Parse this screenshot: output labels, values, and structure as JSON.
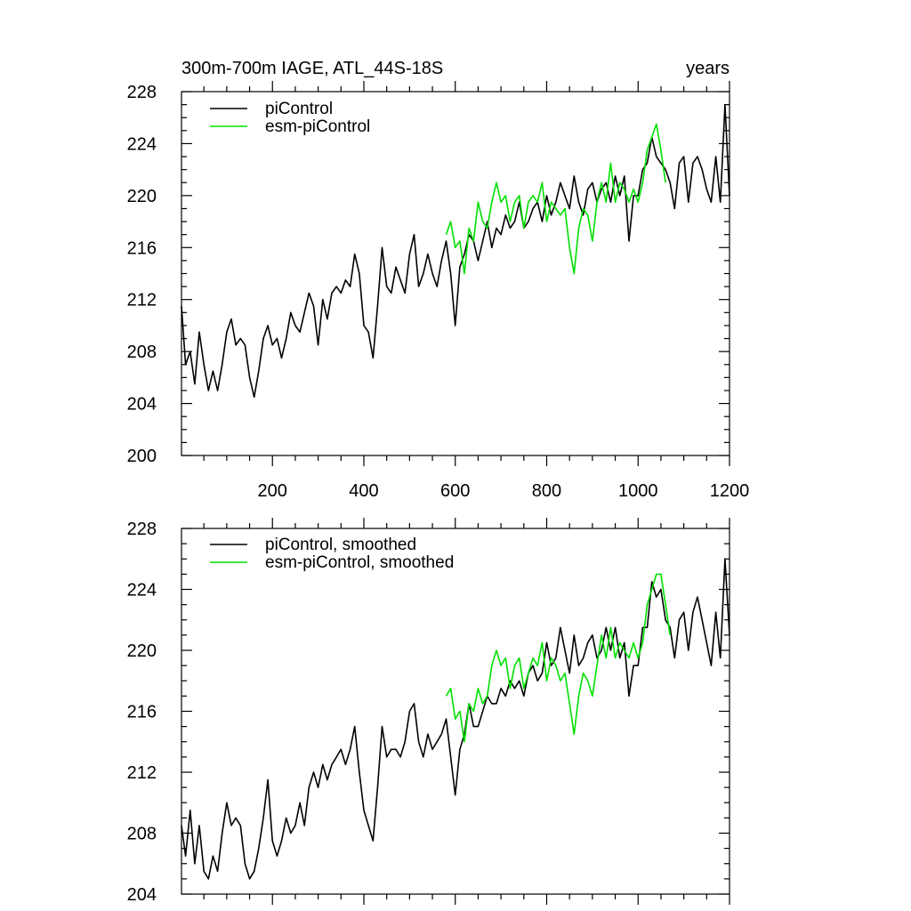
{
  "chart_data": [
    {
      "type": "line",
      "title_left": "300m-700m IAGE, ATL_44S-18S",
      "title_right": "years",
      "xlabel": "",
      "ylabel": "",
      "xlim": [
        1,
        1200
      ],
      "ylim": [
        200,
        228
      ],
      "x_ticks": [
        200,
        400,
        600,
        800,
        1000,
        1200
      ],
      "y_ticks": [
        200,
        204,
        208,
        212,
        216,
        220,
        224,
        228
      ],
      "grid": false,
      "legend_position": "top-left",
      "series": [
        {
          "name": "piControl",
          "color": "#000000",
          "x": [
            1,
            10,
            20,
            30,
            40,
            50,
            60,
            70,
            80,
            90,
            100,
            110,
            120,
            130,
            140,
            150,
            160,
            170,
            180,
            190,
            200,
            210,
            220,
            230,
            240,
            250,
            260,
            270,
            280,
            290,
            300,
            310,
            320,
            330,
            340,
            350,
            360,
            370,
            380,
            390,
            400,
            410,
            420,
            430,
            440,
            450,
            460,
            470,
            480,
            490,
            500,
            510,
            520,
            530,
            540,
            550,
            560,
            570,
            580,
            590,
            600,
            610,
            620,
            630,
            640,
            650,
            660,
            670,
            680,
            690,
            700,
            710,
            720,
            730,
            740,
            750,
            760,
            770,
            780,
            790,
            800,
            810,
            820,
            830,
            840,
            850,
            860,
            870,
            880,
            890,
            900,
            910,
            920,
            930,
            940,
            950,
            960,
            970,
            980,
            990,
            1000,
            1010,
            1020,
            1030,
            1040,
            1050,
            1060,
            1070,
            1080,
            1090,
            1100,
            1110,
            1120,
            1130,
            1140,
            1150,
            1160,
            1170,
            1180,
            1190,
            1200
          ],
          "values": [
            211.5,
            207.0,
            208.0,
            205.5,
            209.5,
            207.0,
            205.0,
            206.5,
            205.0,
            207.0,
            209.5,
            210.5,
            208.5,
            209.0,
            208.5,
            206.0,
            204.5,
            206.5,
            209.0,
            210.0,
            208.5,
            209.0,
            207.5,
            209.0,
            211.0,
            210.0,
            209.5,
            211.0,
            212.5,
            211.5,
            208.5,
            212.0,
            210.5,
            212.5,
            213.0,
            212.5,
            213.5,
            213.0,
            215.5,
            214.0,
            210.0,
            209.5,
            207.5,
            211.5,
            216.0,
            213.0,
            212.5,
            214.5,
            213.5,
            212.5,
            215.5,
            217.0,
            213.0,
            214.0,
            215.5,
            214.0,
            213.0,
            215.0,
            216.5,
            214.0,
            210.0,
            214.5,
            215.5,
            217.0,
            216.5,
            215.0,
            216.5,
            218.0,
            216.0,
            217.5,
            217.0,
            218.5,
            217.5,
            218.0,
            219.5,
            217.5,
            218.0,
            219.0,
            219.5,
            218.0,
            220.0,
            218.5,
            219.5,
            221.0,
            220.0,
            219.0,
            221.5,
            219.5,
            218.5,
            220.5,
            221.0,
            219.5,
            220.5,
            221.0,
            219.5,
            221.5,
            220.0,
            221.5,
            216.5,
            220.0,
            220.0,
            222.0,
            222.5,
            224.5,
            223.0,
            222.5,
            222.0,
            221.0,
            219.0,
            222.5,
            223.0,
            219.5,
            222.5,
            223.0,
            222.0,
            220.5,
            219.5,
            223.0,
            219.5,
            227.0,
            220.0
          ]
        },
        {
          "name": "esm-piControl",
          "color": "#00e000",
          "x": [
            580,
            590,
            600,
            610,
            620,
            630,
            640,
            650,
            660,
            670,
            680,
            690,
            700,
            710,
            720,
            730,
            740,
            750,
            760,
            770,
            780,
            790,
            800,
            810,
            820,
            830,
            840,
            850,
            860,
            870,
            880,
            890,
            900,
            910,
            920,
            930,
            940,
            950,
            960,
            970,
            980,
            990,
            1000,
            1010,
            1020,
            1030,
            1040,
            1050,
            1060
          ],
          "values": [
            217.0,
            218.0,
            216.0,
            216.5,
            214.0,
            217.5,
            216.5,
            219.5,
            218.0,
            217.5,
            219.5,
            221.0,
            219.5,
            220.0,
            218.0,
            219.5,
            220.0,
            217.5,
            219.5,
            220.0,
            219.5,
            221.0,
            218.0,
            219.5,
            219.0,
            218.5,
            219.0,
            216.0,
            214.0,
            217.5,
            219.0,
            218.5,
            216.5,
            219.5,
            221.0,
            219.5,
            222.5,
            219.5,
            221.0,
            220.5,
            219.5,
            220.5,
            219.5,
            221.0,
            223.5,
            224.5,
            225.5,
            223.5,
            221.0
          ]
        }
      ]
    },
    {
      "type": "line",
      "xlabel": "",
      "ylabel": "",
      "xlim": [
        1,
        1200
      ],
      "ylim": [
        204,
        228
      ],
      "y_ticks": [
        204,
        208,
        212,
        216,
        220,
        224,
        228
      ],
      "grid": false,
      "legend_position": "top-left",
      "series": [
        {
          "name": "piControl, smoothed",
          "color": "#000000",
          "x": [
            1,
            10,
            20,
            30,
            40,
            50,
            60,
            70,
            80,
            90,
            100,
            110,
            120,
            130,
            140,
            150,
            160,
            170,
            180,
            190,
            200,
            210,
            220,
            230,
            240,
            250,
            260,
            270,
            280,
            290,
            300,
            310,
            320,
            330,
            340,
            350,
            360,
            370,
            380,
            390,
            400,
            410,
            420,
            430,
            440,
            450,
            460,
            470,
            480,
            490,
            500,
            510,
            520,
            530,
            540,
            550,
            560,
            570,
            580,
            590,
            600,
            610,
            620,
            630,
            640,
            650,
            660,
            670,
            680,
            690,
            700,
            710,
            720,
            730,
            740,
            750,
            760,
            770,
            780,
            790,
            800,
            810,
            820,
            830,
            840,
            850,
            860,
            870,
            880,
            890,
            900,
            910,
            920,
            930,
            940,
            950,
            960,
            970,
            980,
            990,
            1000,
            1010,
            1020,
            1030,
            1040,
            1050,
            1060,
            1070,
            1080,
            1090,
            1100,
            1110,
            1120,
            1130,
            1140,
            1150,
            1160,
            1170,
            1180,
            1190,
            1200
          ],
          "values": [
            208.5,
            206.5,
            209.5,
            206.0,
            208.5,
            205.5,
            205.0,
            206.5,
            205.5,
            208.0,
            210.0,
            208.5,
            209.0,
            208.5,
            206.0,
            205.0,
            205.5,
            207.0,
            209.0,
            211.5,
            207.5,
            206.5,
            207.5,
            209.0,
            208.0,
            208.5,
            210.0,
            208.5,
            211.0,
            212.0,
            211.0,
            212.5,
            211.5,
            212.5,
            213.0,
            213.5,
            212.5,
            213.5,
            215.0,
            212.0,
            209.5,
            208.5,
            207.5,
            211.0,
            215.0,
            213.0,
            213.5,
            213.5,
            213.0,
            214.0,
            216.0,
            216.5,
            214.0,
            213.0,
            214.5,
            213.5,
            214.0,
            214.5,
            215.5,
            213.0,
            210.5,
            213.5,
            214.5,
            216.5,
            215.0,
            215.0,
            216.0,
            217.0,
            216.5,
            216.5,
            217.5,
            217.0,
            218.0,
            217.5,
            218.0,
            217.0,
            218.5,
            219.0,
            218.0,
            218.5,
            220.5,
            219.0,
            219.5,
            221.5,
            220.0,
            218.5,
            221.0,
            219.0,
            219.5,
            220.5,
            221.0,
            219.5,
            220.0,
            221.5,
            220.0,
            221.5,
            219.5,
            220.5,
            217.0,
            219.0,
            219.0,
            221.5,
            221.5,
            224.5,
            223.5,
            224.0,
            222.0,
            221.5,
            219.5,
            222.0,
            222.5,
            220.0,
            222.5,
            223.5,
            222.0,
            220.5,
            219.0,
            222.5,
            219.5,
            226.0,
            221.0
          ]
        },
        {
          "name": "esm-piControl, smoothed",
          "color": "#00e000",
          "x": [
            580,
            590,
            600,
            610,
            620,
            630,
            640,
            650,
            660,
            670,
            680,
            690,
            700,
            710,
            720,
            730,
            740,
            750,
            760,
            770,
            780,
            790,
            800,
            810,
            820,
            830,
            840,
            850,
            860,
            870,
            880,
            890,
            900,
            910,
            920,
            930,
            940,
            950,
            960,
            970,
            980,
            990,
            1000,
            1010,
            1020,
            1030,
            1040,
            1050,
            1060,
            1070
          ],
          "values": [
            217.0,
            217.5,
            215.5,
            216.0,
            214.0,
            216.5,
            216.0,
            217.5,
            216.5,
            217.0,
            219.0,
            220.0,
            219.0,
            219.5,
            217.5,
            219.0,
            219.5,
            217.5,
            218.5,
            219.5,
            219.0,
            220.5,
            218.0,
            219.5,
            219.0,
            218.0,
            218.5,
            216.5,
            214.5,
            217.0,
            218.5,
            218.0,
            217.0,
            219.0,
            221.0,
            219.5,
            221.5,
            219.5,
            220.5,
            220.0,
            219.5,
            220.5,
            219.5,
            220.5,
            223.0,
            224.0,
            225.0,
            225.0,
            223.0,
            221.0
          ]
        }
      ]
    }
  ]
}
